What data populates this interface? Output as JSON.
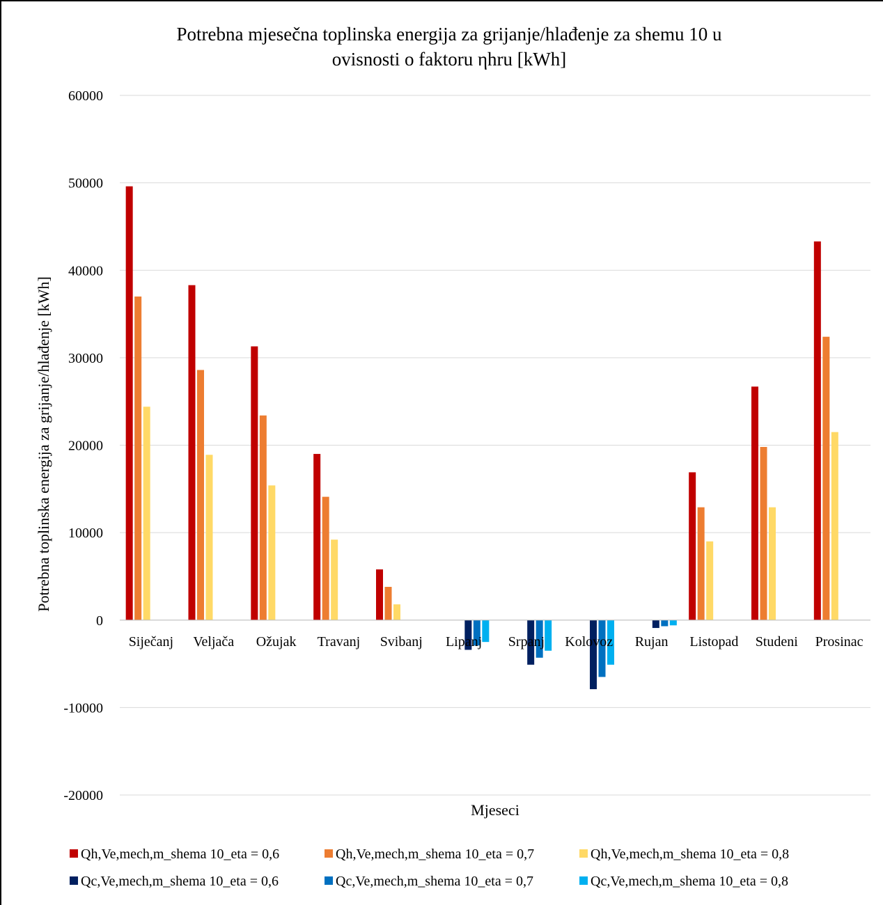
{
  "chart_data": {
    "type": "bar",
    "title_lines": [
      "Potrebna mjesečna toplinska energija za grijanje/hlađenje za shemu 10 u",
      "ovisnosti o faktoru ηhru [kWh]"
    ],
    "xlabel": "Mjeseci",
    "ylabel": "Potrebna toplinska energija za grijanje/hlađenje [kWh]",
    "ylim": [
      -20000,
      60000
    ],
    "yticks": [
      -20000,
      -10000,
      0,
      10000,
      20000,
      30000,
      40000,
      50000,
      60000
    ],
    "grid": true,
    "legend_position": "bottom",
    "categories": [
      "Siječanj",
      "Veljača",
      "Ožujak",
      "Travanj",
      "Svibanj",
      "Lipanj",
      "Srpanj",
      "Kolovoz",
      "Rujan",
      "Listopad",
      "Studeni",
      "Prosinac"
    ],
    "series": [
      {
        "name": "Qh,Ve,mech,m_shema 10_eta = 0,6",
        "color": "#c00000",
        "values": [
          49600,
          38300,
          31300,
          19000,
          5800,
          0,
          0,
          0,
          0,
          16900,
          26700,
          43300
        ]
      },
      {
        "name": "Qh,Ve,mech,m_shema 10_eta = 0,7",
        "color": "#ed7d31",
        "values": [
          37000,
          28600,
          23400,
          14100,
          3800,
          0,
          0,
          0,
          0,
          12900,
          19800,
          32400
        ]
      },
      {
        "name": "Qh,Ve,mech,m_shema 10_eta = 0,8",
        "color": "#ffd966",
        "values": [
          24400,
          18900,
          15400,
          9200,
          1800,
          0,
          0,
          0,
          0,
          9000,
          12900,
          21500
        ]
      },
      {
        "name": "Qc,Ve,mech,m_shema 10_eta = 0,6",
        "color": "#002060",
        "values": [
          0,
          0,
          0,
          0,
          0,
          -3400,
          -5100,
          -7900,
          -900,
          0,
          0,
          0
        ]
      },
      {
        "name": "Qc,Ve,mech,m_shema 10_eta = 0,7",
        "color": "#0070c0",
        "values": [
          0,
          0,
          0,
          0,
          0,
          -2900,
          -4300,
          -6500,
          -700,
          0,
          0,
          0
        ]
      },
      {
        "name": "Qc,Ve,mech,m_shema 10_eta = 0,8",
        "color": "#00b0f0",
        "values": [
          0,
          0,
          0,
          0,
          0,
          -2500,
          -3500,
          -5100,
          -600,
          0,
          0,
          0
        ]
      }
    ]
  }
}
